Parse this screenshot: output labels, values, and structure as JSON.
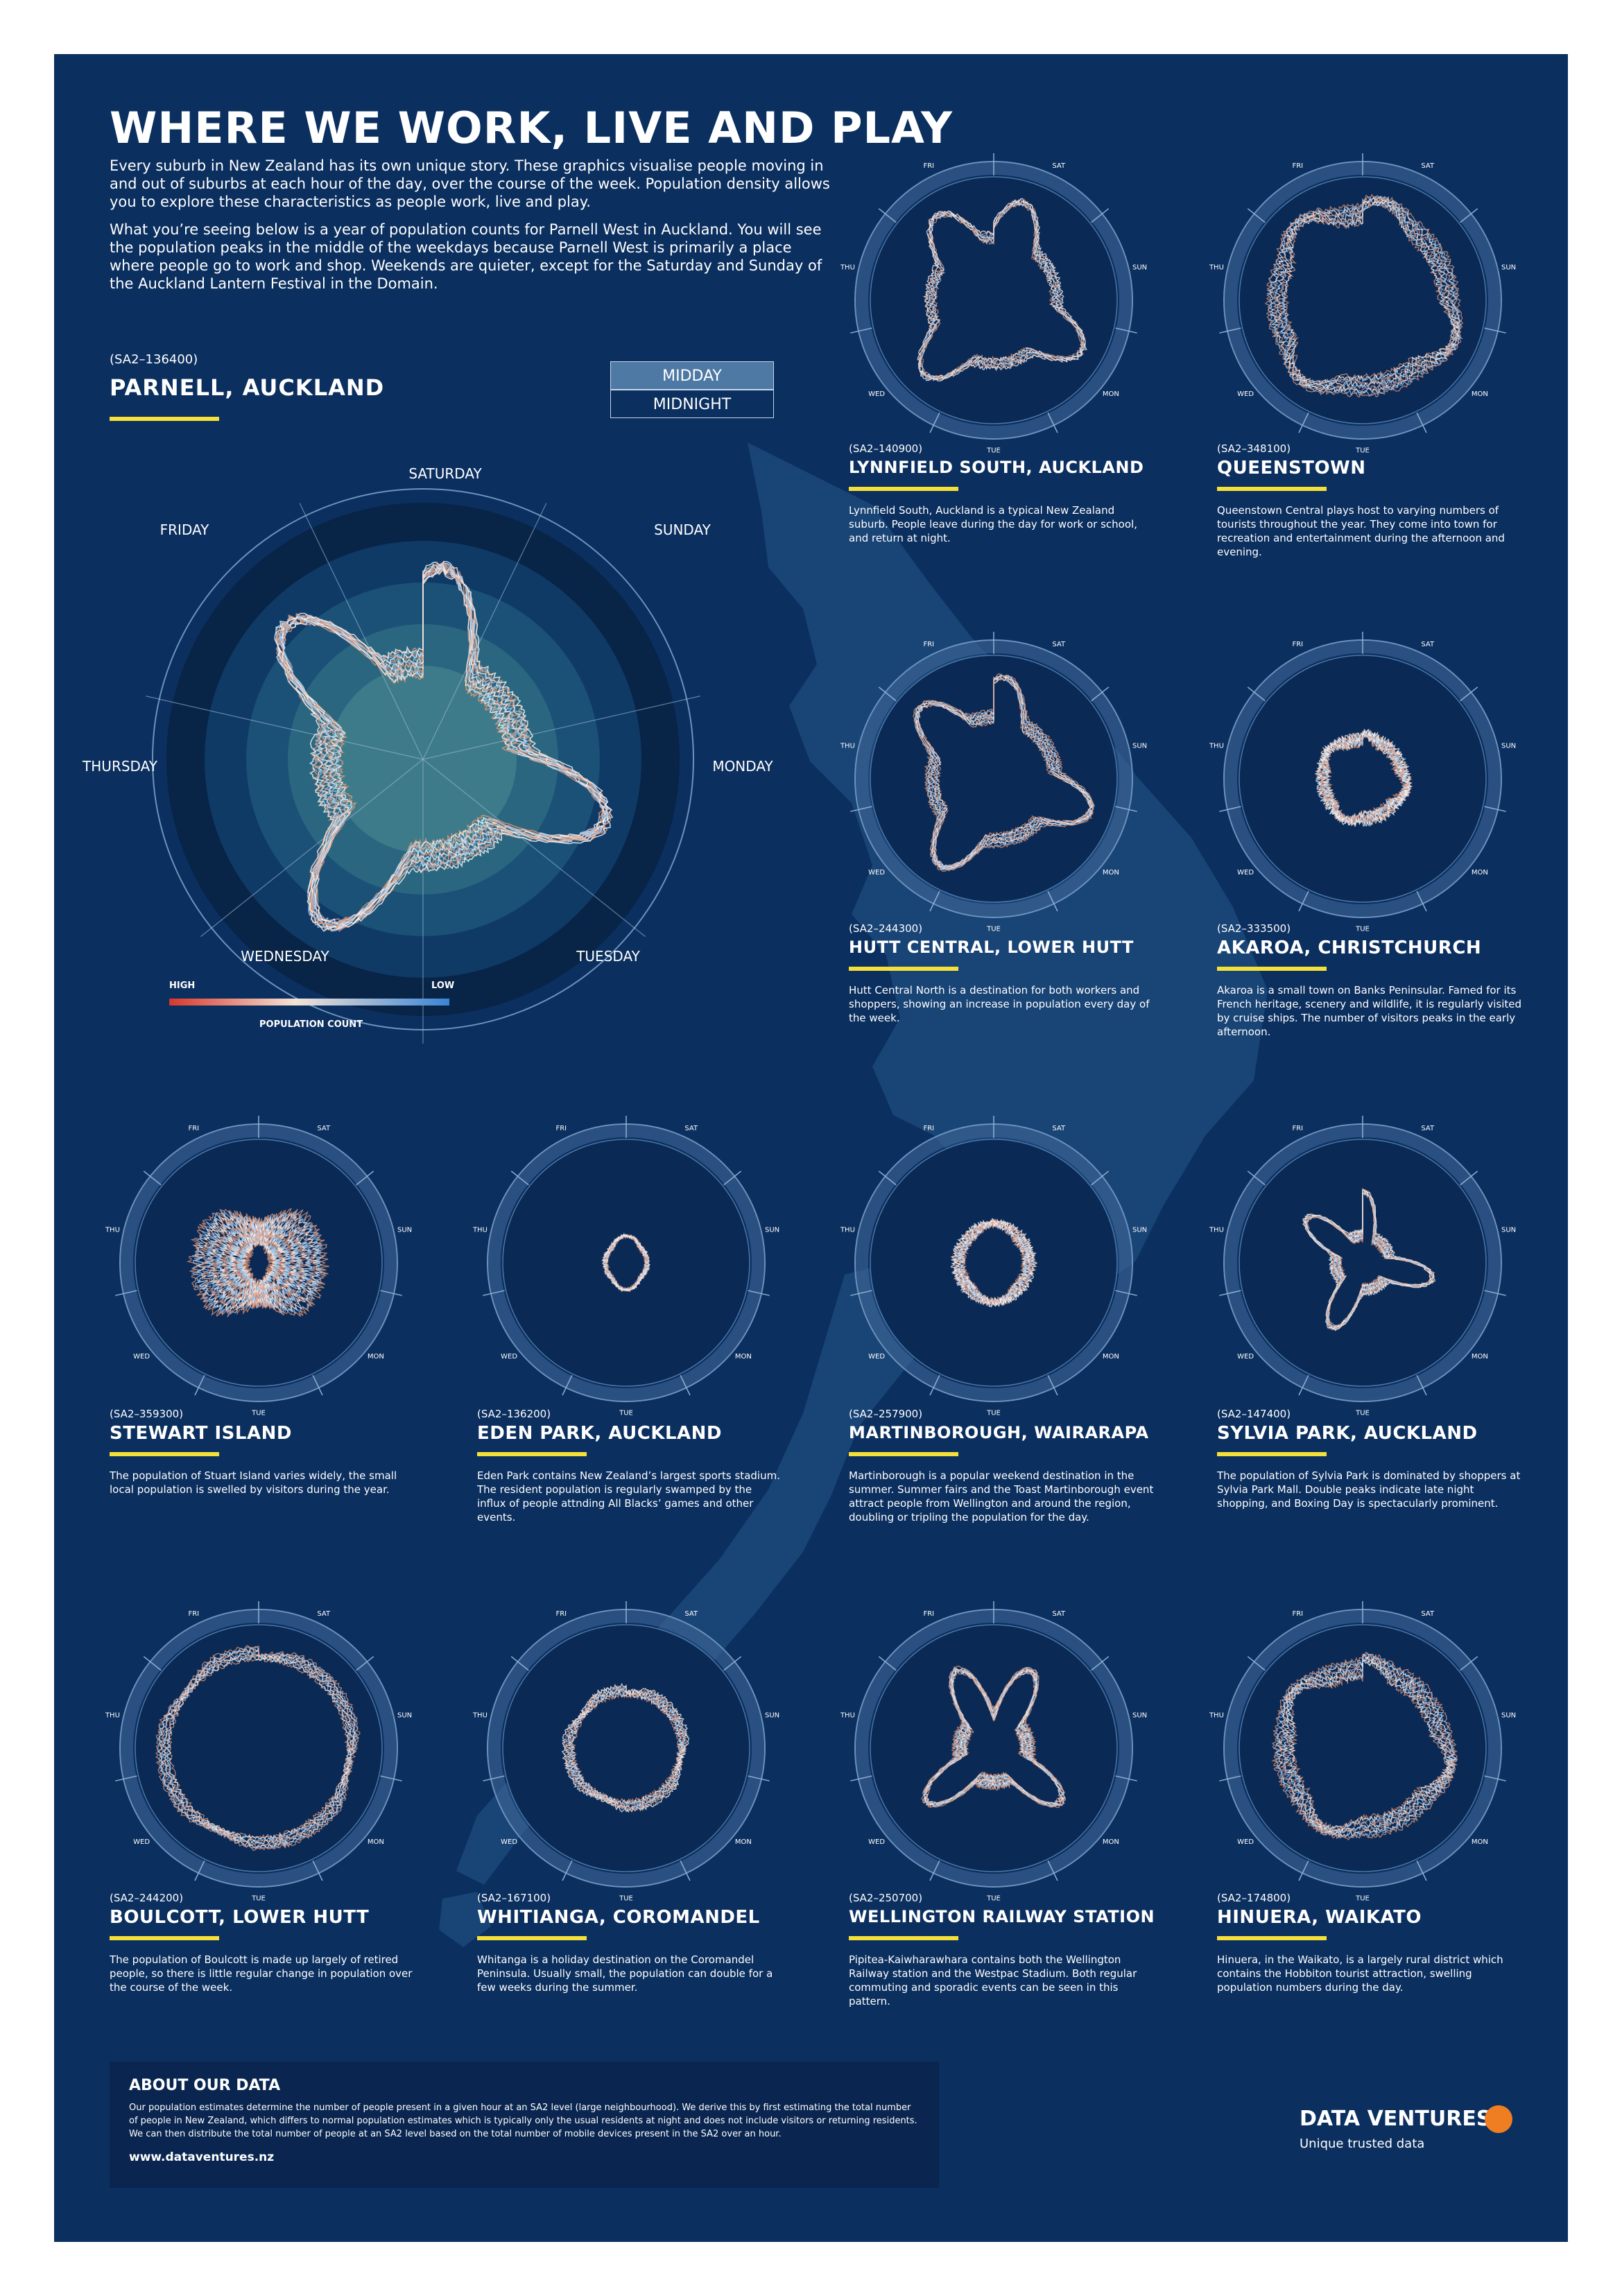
{
  "title": "WHERE WE WORK, LIVE AND PLAY",
  "intro": [
    "Every suburb in New Zealand has its own unique story. These graphics visualise people moving in and out of suburbs at each hour of the day, over the course of the week. Population density allows you to explore these characteristics as people work, live and play.",
    "What you’re seeing below is a year of population counts for Parnell West in Auckland. You will see the population peaks in the middle of the weekdays because Parnell West is primarily a place where people go to work and shop. Weekends are quieter, except for the Saturday and Sunday of the Auckland Lantern Festival in the Domain."
  ],
  "featured": {
    "code": "(SA2–136400)",
    "name": "PARNELL, AUCKLAND",
    "toggle": [
      "MIDDAY",
      "MIDNIGHT"
    ],
    "days": [
      "SATURDAY",
      "SUNDAY",
      "MONDAY",
      "TUESDAY",
      "WEDNESDAY",
      "THURSDAY",
      "FRIDAY"
    ]
  },
  "small_days": [
    "SAT",
    "SUN",
    "MON",
    "TUE",
    "WED",
    "THU",
    "FRI"
  ],
  "legend": {
    "high": "HIGH",
    "low": "LOW",
    "title": "POPULATION COUNT"
  },
  "panels": [
    {
      "code": "(SA2–140900)",
      "name": "LYNNFIELD SOUTH, AUCKLAND",
      "description": "Lynnfield South, Auckland is a typical New Zealand suburb. People leave during the day for work or school, and return at night."
    },
    {
      "code": "(SA2–348100)",
      "name": "QUEENSTOWN",
      "description": "Queenstown Central plays host to varying numbers of tourists throughout the year. They come into town for recreation and entertainment during the afternoon and evening."
    },
    {
      "code": "(SA2–244300)",
      "name": "HUTT CENTRAL, LOWER HUTT",
      "description": "Hutt Central North is a destination for both workers and shoppers, showing an increase in population every day of the week."
    },
    {
      "code": "(SA2–333500)",
      "name": "AKAROA, CHRISTCHURCH",
      "description": "Akaroa is a small town on Banks Peninsular. Famed for its French heritage, scenery and wildlife, it is regularly visited by cruise ships. The number of visitors peaks in the early afternoon."
    },
    {
      "code": "(SA2–359300)",
      "name": "STEWART ISLAND",
      "description": "The population of Stuart Island varies widely, the small local population is swelled by visitors during the year."
    },
    {
      "code": "(SA2–136200)",
      "name": "EDEN PARK, AUCKLAND",
      "description": "Eden Park contains New Zealand’s largest sports stadium. The resident population is regularly swamped by the influx of people attnding All Blacks’ games and other events."
    },
    {
      "code": "(SA2–257900)",
      "name": "MARTINBOROUGH, WAIRARAPA",
      "description": "Martinborough is a popular weekend destination in the summer. Summer fairs and the Toast Martinborough event attract people from Wellington and around the region, doubling or tripling the population for the day."
    },
    {
      "code": "(SA2–147400)",
      "name": "SYLVIA PARK, AUCKLAND",
      "description": "The population of Sylvia Park is dominated by shoppers at Sylvia Park Mall. Double peaks indicate late night shopping, and Boxing Day is spectacularly prominent."
    },
    {
      "code": "(SA2–244200)",
      "name": "BOULCOTT, LOWER HUTT",
      "description": "The population of Boulcott is made up largely of retired people, so there is little regular change in population over the course of the week."
    },
    {
      "code": "(SA2–167100)",
      "name": "WHITIANGA, COROMANDEL",
      "description": "Whitanga is a holiday destination on the Coromandel Peninsula. Usually small, the population can double for a few weeks during the summer."
    },
    {
      "code": "(SA2–250700)",
      "name": "WELLINGTON RAILWAY STATION",
      "description": "Pipitea-Kaiwharawhara contains both the Wellington Railway station and the Westpac Stadium. Both regular commuting and sporadic events can be seen in this pattern."
    },
    {
      "code": "(SA2–174800)",
      "name": "HINUERA, WAIKATO",
      "description": "Hinuera, in the Waikato, is a largely rural district which contains the Hobbiton tourist attraction, swelling population numbers during the day."
    }
  ],
  "about": {
    "heading": "ABOUT OUR DATA",
    "text": "Our population estimates determine the number of people present in a given hour at an SA2 level (large neighbourhood). We derive this by first estimating the total number of people in New Zealand, which differs to normal population estimates which is typically only the usual residents at night and does not include visitors or returning residents. We can then distribute the total number of people at an SA2 level based on the total number of mobile devices present in the SA2 over an hour.",
    "url": "www.dataventures.nz"
  },
  "brand": {
    "name": "DATA VENTURES",
    "tagline": "Unique trusted data"
  },
  "colors": {
    "background": "#0b2f5f",
    "accent_rule": "#f5e03a",
    "high": "#d7372c",
    "low": "#3a84d6",
    "brand_dot": "#ef7d22"
  }
}
